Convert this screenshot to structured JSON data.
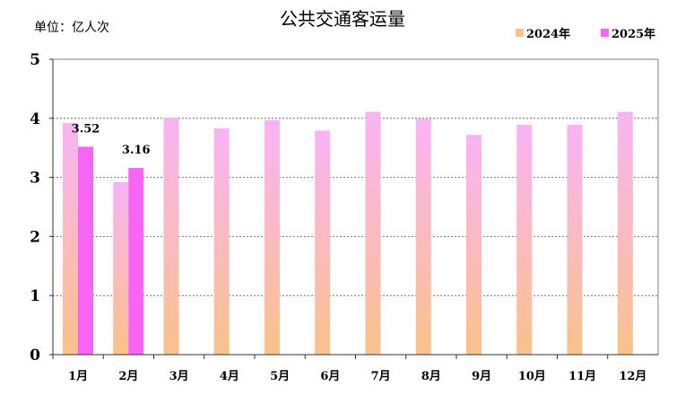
{
  "chart_data": {
    "type": "bar",
    "title": "公共交通客运量",
    "unit_label": "单位：亿人次",
    "categories": [
      "1月",
      "2月",
      "3月",
      "4月",
      "5月",
      "6月",
      "7月",
      "8月",
      "9月",
      "10月",
      "11月",
      "12月"
    ],
    "series": [
      {
        "name": "2024年",
        "values": [
          3.92,
          2.92,
          4.01,
          3.83,
          3.97,
          3.79,
          4.11,
          3.99,
          3.72,
          3.89,
          3.89,
          4.11
        ],
        "color_top": "#f9b3f5",
        "color_bottom": "#f9c28a"
      },
      {
        "name": "2025年",
        "values": [
          3.52,
          3.16,
          null,
          null,
          null,
          null,
          null,
          null,
          null,
          null,
          null,
          null
        ],
        "color": "#f765f5"
      }
    ],
    "data_labels": [
      {
        "series": "2025年",
        "category": "1月",
        "text": "3.52"
      },
      {
        "series": "2025年",
        "category": "2月",
        "text": "3.16"
      }
    ],
    "ylim": [
      0,
      5
    ],
    "yticks": [
      "0",
      "1",
      "2",
      "3",
      "4",
      "5"
    ],
    "grid": true,
    "legend_position": "top-right"
  }
}
